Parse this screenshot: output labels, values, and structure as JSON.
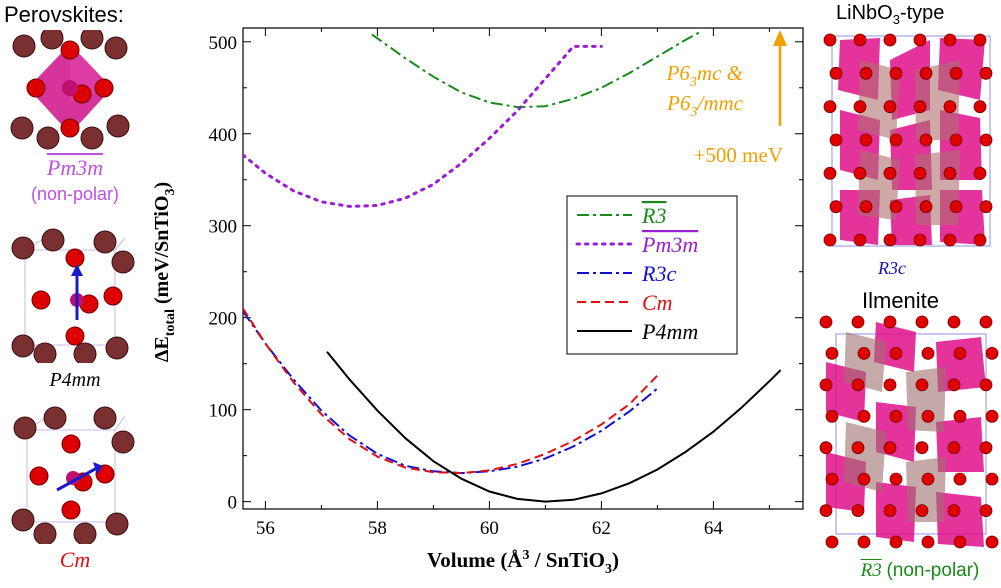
{
  "panels": {
    "perovskites_title": "Perovskites:",
    "pm3m_label": "Pm3m",
    "pm3m_note": "(non-polar)",
    "p4mm_label": "P4mm",
    "cm_label": "Cm",
    "linbo3_title": "LiNbO",
    "linbo3_sub": "3",
    "linbo3_suffix": "-type",
    "r3c_label": "R3c",
    "ilmenite_title": "Ilmenite",
    "r3_label": "R3",
    "r3_note": "(non-polar)"
  },
  "colors": {
    "r3": "#1a8a1a",
    "pm3m": "#9a1fd0",
    "r3c": "#1010d0",
    "cm": "#e01010",
    "p4mm": "#000000",
    "annotation": "#f0a000",
    "pm3m_label": "#c050e0"
  },
  "chart_data": {
    "type": "line",
    "xlabel": "Volume (Å³ / SnTiO₃)",
    "ylabel": "ΔE_total (meV/SnTiO₃)",
    "xlim": [
      55.6,
      65.6
    ],
    "ylim": [
      -8,
      515
    ],
    "xticks": [
      56,
      58,
      60,
      62,
      64
    ],
    "yticks": [
      0,
      100,
      200,
      300,
      400,
      500
    ],
    "grid": false,
    "legend_position": "center-right",
    "annotation": {
      "text_line1": "P6₃mc &",
      "text_line2": "P6₃/mmc",
      "text_offset": "+500 meV"
    },
    "series": [
      {
        "name": "R3",
        "key": "r3",
        "style": "dashdot",
        "x": [
          57.9,
          58.5,
          59.0,
          59.5,
          60.0,
          60.5,
          61.0,
          61.5,
          62.0,
          62.5,
          63.0,
          63.5,
          63.8
        ],
        "y": [
          508,
          482,
          462,
          445,
          434,
          429,
          430,
          438,
          450,
          466,
          484,
          502,
          512
        ]
      },
      {
        "name": "Pm3m",
        "key": "pm3m",
        "style": "dotted",
        "x": [
          55.6,
          56.0,
          56.5,
          57.0,
          57.5,
          58.0,
          58.5,
          59.0,
          59.5,
          60.0,
          60.5,
          61.0,
          61.5,
          62.0
        ],
        "y": [
          377,
          357,
          338,
          326,
          321,
          322,
          330,
          345,
          368,
          395,
          425,
          460,
          495,
          495
        ]
      },
      {
        "name": "R3c",
        "key": "r3c",
        "style": "dashdot",
        "x": [
          55.6,
          56.0,
          56.5,
          57.0,
          57.5,
          58.0,
          58.5,
          59.0,
          59.5,
          60.0,
          60.5,
          61.0,
          61.5,
          62.0,
          62.5,
          63.0
        ],
        "y": [
          207,
          172,
          133,
          99,
          72,
          52,
          39,
          33,
          31,
          33,
          38,
          47,
          60,
          77,
          98,
          123
        ]
      },
      {
        "name": "Cm",
        "key": "cm",
        "style": "dashed",
        "x": [
          55.6,
          56.0,
          56.5,
          57.0,
          57.5,
          58.0,
          58.5,
          59.0,
          59.5,
          60.0,
          60.5,
          61.0,
          61.5,
          62.0,
          62.5,
          63.0
        ],
        "y": [
          210,
          172,
          130,
          95,
          68,
          49,
          37,
          32,
          31,
          34,
          41,
          52,
          66,
          84,
          106,
          137
        ]
      },
      {
        "name": "P4mm",
        "key": "p4mm",
        "style": "solid",
        "x": [
          57.1,
          57.5,
          58.0,
          58.5,
          59.0,
          59.5,
          60.0,
          60.5,
          61.0,
          61.5,
          62.0,
          62.5,
          63.0,
          63.5,
          64.0,
          64.5,
          65.0,
          65.2
        ],
        "y": [
          163,
          133,
          99,
          69,
          44,
          25,
          11,
          3,
          0,
          2,
          9,
          20,
          35,
          54,
          76,
          102,
          131,
          143
        ]
      }
    ]
  }
}
